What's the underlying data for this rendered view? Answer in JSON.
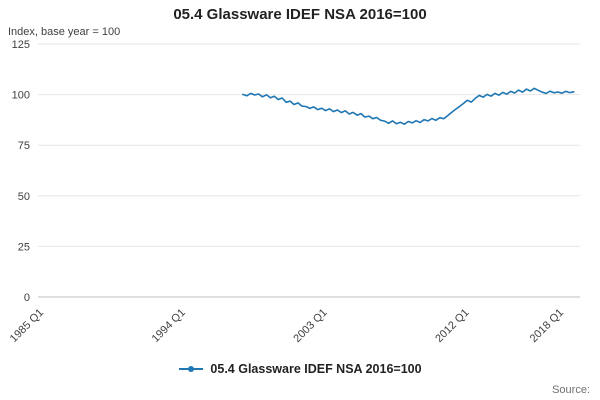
{
  "page": {
    "source_label": "Source:"
  },
  "chart_data": {
    "type": "line",
    "title": "05.4 Glassware IDEF NSA 2016=100",
    "ylabel": "Index, base year = 100",
    "grid": true,
    "legend_position": "bottom",
    "line_color": "#1f77b4",
    "grid_color": "#e6e6e6",
    "axis_line_color": "#bfbfbf",
    "tick_label_color": "#414042",
    "x_axis": {
      "min": 1985,
      "max": 2019.4,
      "ticks": [
        {
          "label": "1985 Q1",
          "value": 1985
        },
        {
          "label": "1994 Q1",
          "value": 1994
        },
        {
          "label": "2003 Q1",
          "value": 2003
        },
        {
          "label": "2012 Q1",
          "value": 2012
        },
        {
          "label": "2018 Q1",
          "value": 2018
        }
      ]
    },
    "y_axis": {
      "min": 0,
      "max": 125,
      "ticks": [
        0,
        25,
        50,
        75,
        100,
        125
      ]
    },
    "series": [
      {
        "name": "05.4 Glassware IDEF NSA 2016=100",
        "x_start": 1998,
        "x_step": 0.25,
        "values": [
          100.1,
          99.4,
          100.6,
          99.8,
          100.3,
          98.9,
          99.9,
          98.4,
          99.2,
          97.6,
          98.3,
          96.2,
          96.8,
          95.1,
          95.9,
          94.3,
          94.1,
          93.2,
          93.9,
          92.6,
          93.3,
          92.1,
          93.0,
          91.6,
          92.4,
          91.1,
          92.0,
          90.4,
          91.2,
          89.8,
          90.6,
          88.9,
          89.4,
          88.1,
          88.7,
          87.3,
          86.9,
          85.8,
          87.0,
          85.6,
          86.3,
          85.4,
          86.7,
          86.0,
          87.1,
          86.2,
          87.6,
          87.0,
          88.2,
          87.3,
          88.6,
          88.1,
          89.6,
          91.2,
          92.7,
          94.1,
          95.6,
          97.2,
          96.3,
          98.1,
          99.6,
          98.7,
          100.1,
          99.2,
          100.6,
          99.7,
          101.1,
          100.2,
          101.6,
          100.8,
          102.2,
          101.2,
          102.7,
          101.8,
          103.1,
          102.1,
          101.2,
          100.6,
          101.7,
          100.9,
          101.3,
          100.7,
          101.6,
          101.0,
          101.4
        ]
      }
    ]
  }
}
